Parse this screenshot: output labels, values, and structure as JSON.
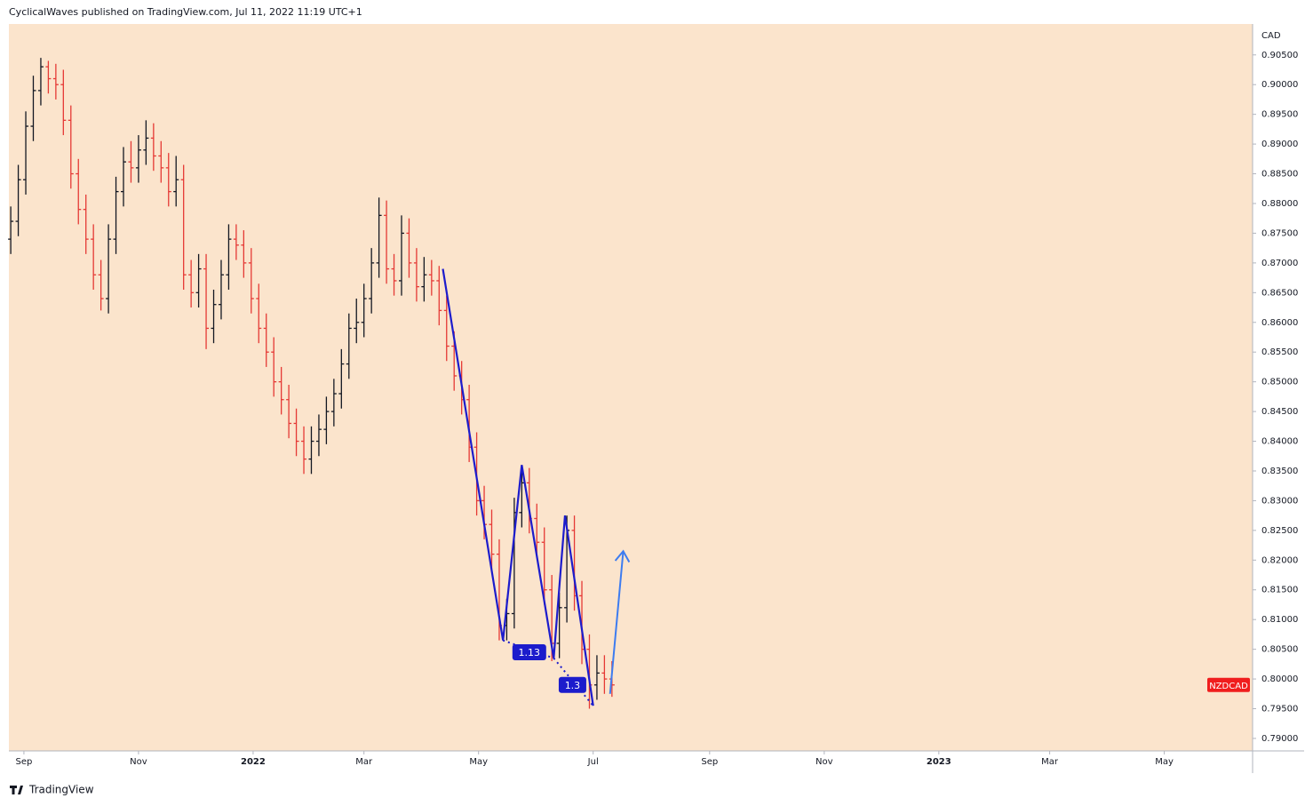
{
  "header": "CyclicalWaves published on TradingView.com, Jul 11, 2022 11:19 UTC+1",
  "footer": "TradingView",
  "chart_data": {
    "type": "ohlc",
    "symbol": "NZDCAD",
    "y_axis_label": "CAD",
    "up_color": "#131722",
    "down_color": "#e53935",
    "background": "#fbe4cc",
    "xlim": [
      "2021-08-24",
      "2023-06-17"
    ],
    "ylim": [
      0.7879,
      0.9102
    ],
    "xticks": [
      {
        "value": "2021-09-01",
        "label": "Sep"
      },
      {
        "value": "2021-11-01",
        "label": "Nov"
      },
      {
        "value": "2022-01-01",
        "label": "2022"
      },
      {
        "value": "2022-03-01",
        "label": "Mar"
      },
      {
        "value": "2022-05-01",
        "label": "May"
      },
      {
        "value": "2022-07-01",
        "label": "Jul"
      },
      {
        "value": "2022-09-01",
        "label": "Sep"
      },
      {
        "value": "2022-11-01",
        "label": "Nov"
      },
      {
        "value": "2023-01-01",
        "label": "2023"
      },
      {
        "value": "2023-03-01",
        "label": "Mar"
      },
      {
        "value": "2023-05-01",
        "label": "May"
      }
    ],
    "yticks": [
      {
        "value": 0.79,
        "label": "0.79000"
      },
      {
        "value": 0.795,
        "label": "0.79500"
      },
      {
        "value": 0.8,
        "label": "0.80000"
      },
      {
        "value": 0.805,
        "label": "0.80500"
      },
      {
        "value": 0.81,
        "label": "0.81000"
      },
      {
        "value": 0.815,
        "label": "0.81500"
      },
      {
        "value": 0.82,
        "label": "0.82000"
      },
      {
        "value": 0.825,
        "label": "0.82500"
      },
      {
        "value": 0.83,
        "label": "0.83000"
      },
      {
        "value": 0.835,
        "label": "0.83500"
      },
      {
        "value": 0.84,
        "label": "0.84000"
      },
      {
        "value": 0.845,
        "label": "0.84500"
      },
      {
        "value": 0.85,
        "label": "0.85000"
      },
      {
        "value": 0.855,
        "label": "0.85500"
      },
      {
        "value": 0.86,
        "label": "0.86000"
      },
      {
        "value": 0.865,
        "label": "0.86500"
      },
      {
        "value": 0.87,
        "label": "0.87000"
      },
      {
        "value": 0.875,
        "label": "0.87500"
      },
      {
        "value": 0.88,
        "label": "0.88000"
      },
      {
        "value": 0.885,
        "label": "0.88500"
      },
      {
        "value": 0.89,
        "label": "0.89000"
      },
      {
        "value": 0.895,
        "label": "0.89500"
      },
      {
        "value": 0.9,
        "label": "0.90000"
      },
      {
        "value": 0.905,
        "label": "0.90500"
      }
    ],
    "x": [
      "2021-08-25",
      "2021-08-29",
      "2021-09-02",
      "2021-09-06",
      "2021-09-10",
      "2021-09-14",
      "2021-09-18",
      "2021-09-22",
      "2021-09-26",
      "2021-09-30",
      "2021-10-04",
      "2021-10-08",
      "2021-10-12",
      "2021-10-16",
      "2021-10-20",
      "2021-10-24",
      "2021-10-28",
      "2021-11-01",
      "2021-11-05",
      "2021-11-09",
      "2021-11-13",
      "2021-11-17",
      "2021-11-21",
      "2021-11-25",
      "2021-11-29",
      "2021-12-03",
      "2021-12-07",
      "2021-12-11",
      "2021-12-15",
      "2021-12-19",
      "2021-12-23",
      "2021-12-27",
      "2021-12-31",
      "2022-01-04",
      "2022-01-08",
      "2022-01-12",
      "2022-01-16",
      "2022-01-20",
      "2022-01-24",
      "2022-01-28",
      "2022-02-01",
      "2022-02-05",
      "2022-02-09",
      "2022-02-13",
      "2022-02-17",
      "2022-02-21",
      "2022-02-25",
      "2022-03-01",
      "2022-03-05",
      "2022-03-09",
      "2022-03-13",
      "2022-03-17",
      "2022-03-21",
      "2022-03-25",
      "2022-03-29",
      "2022-04-02",
      "2022-04-06",
      "2022-04-10",
      "2022-04-14",
      "2022-04-18",
      "2022-04-22",
      "2022-04-26",
      "2022-04-30",
      "2022-05-04",
      "2022-05-08",
      "2022-05-12",
      "2022-05-16",
      "2022-05-20",
      "2022-05-24",
      "2022-05-28",
      "2022-06-01",
      "2022-06-05",
      "2022-06-09",
      "2022-06-13",
      "2022-06-17",
      "2022-06-21",
      "2022-06-25",
      "2022-06-29",
      "2022-07-03",
      "2022-07-07",
      "2022-07-11"
    ],
    "open": [
      0.874,
      0.877,
      0.884,
      0.893,
      0.899,
      0.903,
      0.901,
      0.9,
      0.894,
      0.885,
      0.879,
      0.874,
      0.868,
      0.864,
      0.874,
      0.882,
      0.887,
      0.886,
      0.889,
      0.891,
      0.888,
      0.886,
      0.882,
      0.884,
      0.868,
      0.865,
      0.869,
      0.859,
      0.863,
      0.868,
      0.874,
      0.873,
      0.87,
      0.864,
      0.859,
      0.855,
      0.85,
      0.847,
      0.843,
      0.84,
      0.837,
      0.84,
      0.842,
      0.845,
      0.848,
      0.853,
      0.859,
      0.86,
      0.864,
      0.87,
      0.878,
      0.869,
      0.867,
      0.875,
      0.87,
      0.866,
      0.868,
      0.867,
      0.862,
      0.856,
      0.851,
      0.847,
      0.839,
      0.83,
      0.826,
      0.821,
      0.809,
      0.811,
      0.828,
      0.833,
      0.827,
      0.823,
      0.815,
      0.806,
      0.812,
      0.825,
      0.814,
      0.805,
      0.799,
      0.801,
      0.8
    ],
    "high": [
      0.8795,
      0.8865,
      0.8955,
      0.9015,
      0.9045,
      0.904,
      0.9035,
      0.9025,
      0.8965,
      0.8875,
      0.8815,
      0.8765,
      0.8705,
      0.8765,
      0.8845,
      0.8895,
      0.8905,
      0.8915,
      0.894,
      0.8935,
      0.8905,
      0.8885,
      0.888,
      0.8865,
      0.8705,
      0.8715,
      0.8715,
      0.8655,
      0.8705,
      0.8765,
      0.8765,
      0.8755,
      0.8725,
      0.8665,
      0.8615,
      0.8575,
      0.8525,
      0.8495,
      0.8455,
      0.8425,
      0.8425,
      0.8445,
      0.8475,
      0.8505,
      0.8555,
      0.8615,
      0.864,
      0.8665,
      0.8725,
      0.881,
      0.8805,
      0.8715,
      0.878,
      0.8775,
      0.8725,
      0.871,
      0.8705,
      0.8695,
      0.8645,
      0.8585,
      0.8535,
      0.8495,
      0.8415,
      0.8325,
      0.8285,
      0.8235,
      0.8135,
      0.8305,
      0.836,
      0.8355,
      0.8295,
      0.8255,
      0.8175,
      0.8145,
      0.8275,
      0.8275,
      0.8165,
      0.8075,
      0.804,
      0.804,
      0.803
    ],
    "low": [
      0.8715,
      0.8745,
      0.8815,
      0.8905,
      0.8965,
      0.8985,
      0.8975,
      0.8915,
      0.8825,
      0.8765,
      0.8715,
      0.8655,
      0.862,
      0.8615,
      0.8715,
      0.8795,
      0.8835,
      0.8835,
      0.8865,
      0.8855,
      0.8835,
      0.8795,
      0.8795,
      0.8655,
      0.8625,
      0.8625,
      0.8555,
      0.8565,
      0.8605,
      0.8655,
      0.8705,
      0.8675,
      0.8615,
      0.8565,
      0.8525,
      0.8475,
      0.8445,
      0.8405,
      0.8375,
      0.8345,
      0.8345,
      0.8375,
      0.8395,
      0.8425,
      0.8455,
      0.8505,
      0.8565,
      0.8575,
      0.8615,
      0.8675,
      0.8665,
      0.8645,
      0.8645,
      0.8675,
      0.8635,
      0.8635,
      0.8645,
      0.8595,
      0.8535,
      0.8485,
      0.8445,
      0.8365,
      0.8275,
      0.8235,
      0.8185,
      0.8065,
      0.8065,
      0.8085,
      0.8255,
      0.8245,
      0.8205,
      0.8125,
      0.803,
      0.8035,
      0.8095,
      0.8115,
      0.8025,
      0.795,
      0.7965,
      0.7975,
      0.797
    ],
    "close": [
      0.877,
      0.884,
      0.893,
      0.899,
      0.903,
      0.901,
      0.9,
      0.894,
      0.885,
      0.879,
      0.874,
      0.868,
      0.864,
      0.874,
      0.882,
      0.887,
      0.886,
      0.889,
      0.891,
      0.888,
      0.886,
      0.882,
      0.884,
      0.868,
      0.865,
      0.869,
      0.859,
      0.863,
      0.868,
      0.874,
      0.873,
      0.87,
      0.864,
      0.859,
      0.855,
      0.85,
      0.847,
      0.843,
      0.84,
      0.837,
      0.84,
      0.842,
      0.845,
      0.848,
      0.853,
      0.859,
      0.86,
      0.864,
      0.87,
      0.878,
      0.869,
      0.867,
      0.875,
      0.87,
      0.866,
      0.868,
      0.867,
      0.862,
      0.856,
      0.851,
      0.847,
      0.839,
      0.83,
      0.826,
      0.821,
      0.809,
      0.811,
      0.828,
      0.833,
      0.827,
      0.823,
      0.815,
      0.806,
      0.812,
      0.825,
      0.814,
      0.805,
      0.799,
      0.801,
      0.8,
      0.799
    ],
    "last_price": 0.799,
    "pattern": {
      "color": "#1c1ccc",
      "x": [
        "2022-04-12",
        "2022-05-14",
        "2022-05-24",
        "2022-06-10",
        "2022-06-16",
        "2022-07-01"
      ],
      "y": [
        0.869,
        0.8065,
        0.836,
        0.8035,
        0.8275,
        0.7955
      ]
    },
    "arrow": {
      "color": "#3d7cf0",
      "x": [
        "2022-07-10",
        "2022-07-17"
      ],
      "y": [
        0.7975,
        0.8215
      ]
    },
    "ratios": [
      {
        "label": "1.13",
        "x": "2022-05-28",
        "y": 0.8045
      },
      {
        "label": "1.3",
        "x": "2022-06-20",
        "y": 0.799
      }
    ]
  }
}
